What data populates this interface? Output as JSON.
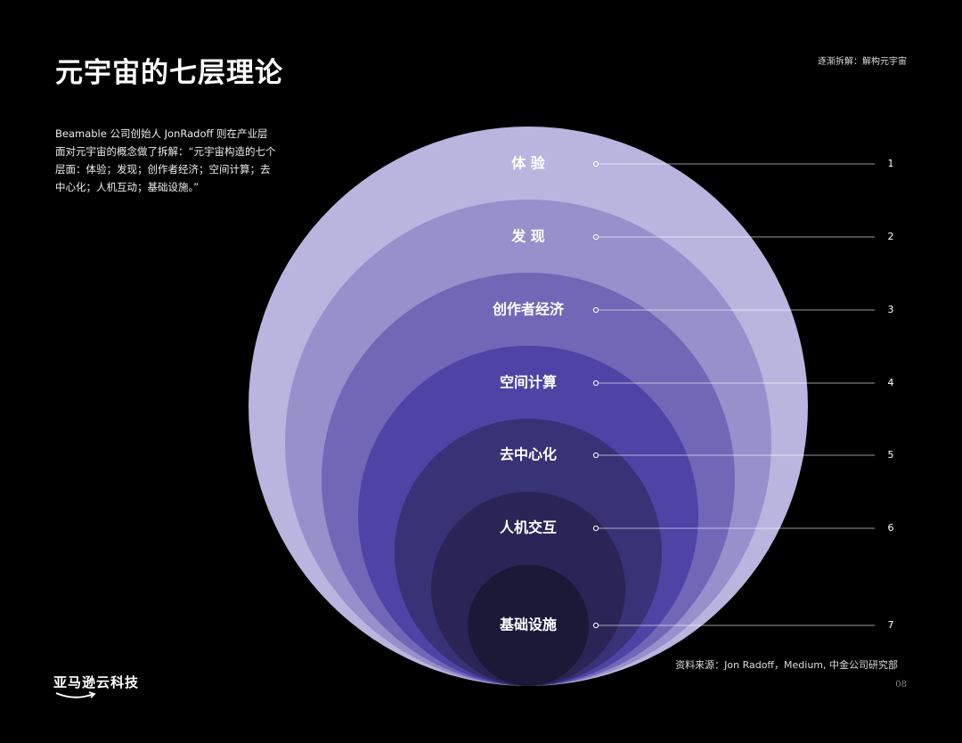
{
  "header": {
    "title": "元宇宙的七层理论",
    "section_label": "逐渐拆解：解构元宇宙"
  },
  "intro": "Beamable 公司创始人 JonRadoff 则在产业层面对元宇宙的概念做了拆解：“元宇宙构造的七个层面：体验；发现；创作者经济；空间计算；去中心化；人机互动；基础设施。”",
  "layers": [
    {
      "number": "1",
      "label": "体 验",
      "color": "#b9b5df"
    },
    {
      "number": "2",
      "label": "发 现",
      "color": "#9790cb"
    },
    {
      "number": "3",
      "label": "创作者经济",
      "color": "#7068b6"
    },
    {
      "number": "4",
      "label": "空间计算",
      "color": "#4d44a6"
    },
    {
      "number": "5",
      "label": "去中心化",
      "color": "#383276"
    },
    {
      "number": "6",
      "label": "人机交互",
      "color": "#2a2556"
    },
    {
      "number": "7",
      "label": "基础设施",
      "color": "#1b1838"
    }
  ],
  "footer": {
    "source": "资料来源：Jon Radoff，Medium, 中金公司研究部",
    "page_number": "08",
    "logo_text": "亚马逊云科技"
  }
}
